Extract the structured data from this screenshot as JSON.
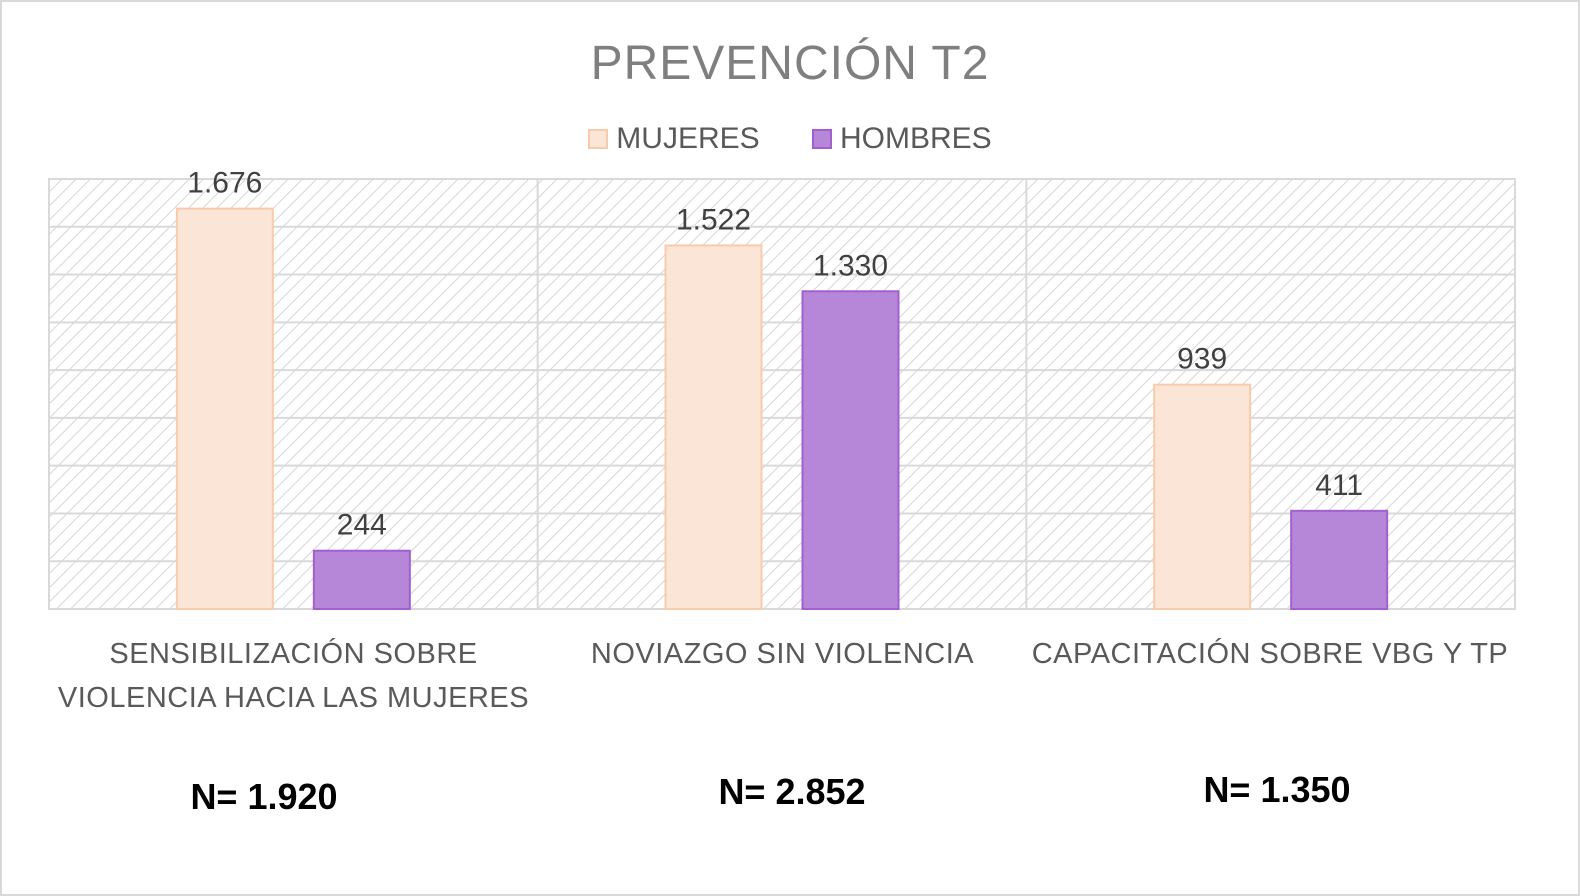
{
  "chart_data": {
    "type": "bar",
    "title": "PREVENCIÓN T2",
    "categories": [
      "SENSIBILIZACIÓN SOBRE VIOLENCIA HACIA LAS MUJERES",
      "NOVIAZGO SIN VIOLENCIA",
      "CAPACITACIÓN SOBRE VBG Y TP"
    ],
    "series": [
      {
        "name": "MUJERES",
        "values": [
          1676,
          1522,
          939
        ],
        "labels": [
          "1.676",
          "1.522",
          "939"
        ],
        "color": "#fbe5d6",
        "border": "#f8cbad"
      },
      {
        "name": "HOMBRES",
        "values": [
          244,
          1330,
          411
        ],
        "labels": [
          "244",
          "1.330",
          "411"
        ],
        "color": "#b687d8",
        "border": "#a35fd0"
      }
    ],
    "ylim": [
      0,
      1800
    ],
    "grid": true,
    "legend": "top",
    "xlabel": "",
    "ylabel": ""
  },
  "category_lines": [
    [
      "SENSIBILIZACIÓN SOBRE",
      "VIOLENCIA HACIA LAS MUJERES"
    ],
    [
      "NOVIAZGO SIN VIOLENCIA"
    ],
    [
      "CAPACITACIÓN SOBRE VBG Y TP"
    ]
  ],
  "totals": [
    "N= 1.920",
    "N= 2.852",
    "N= 1.350"
  ]
}
